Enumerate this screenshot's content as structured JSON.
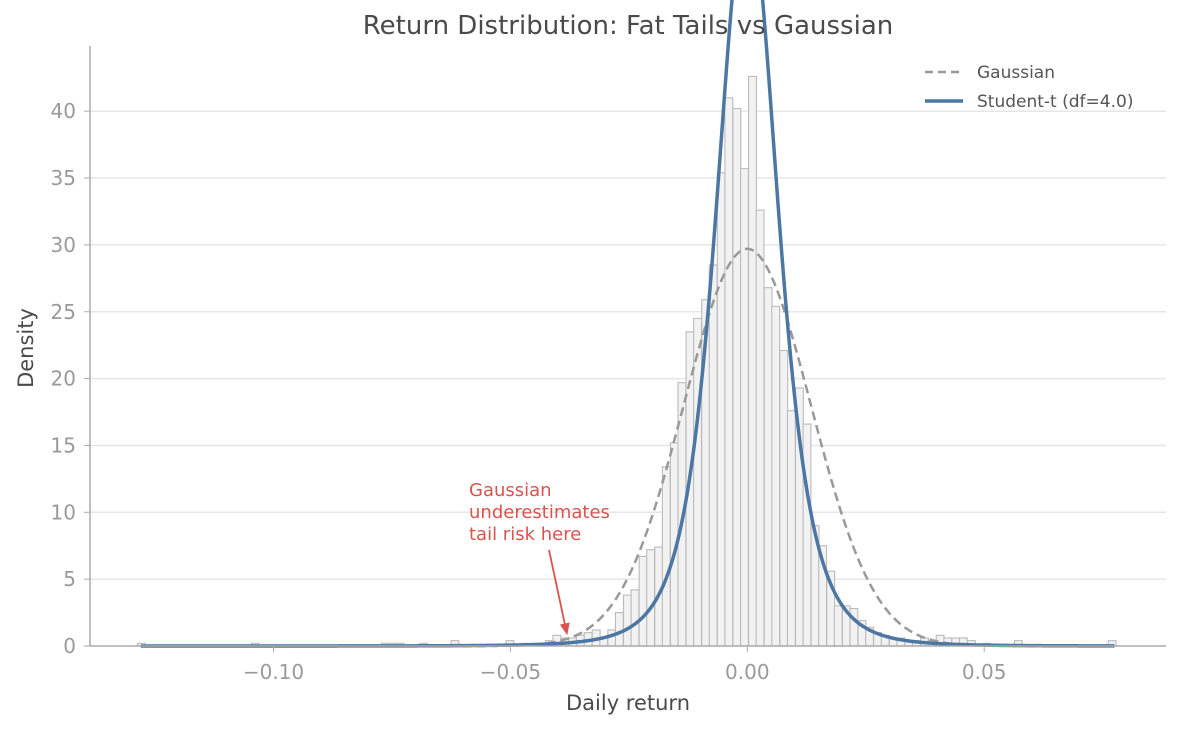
{
  "chart_data": {
    "type": "histogram+line",
    "title": "Return Distribution: Fat Tails vs Gaussian",
    "xlabel": "Daily return",
    "ylabel": "Density",
    "xlim": [
      -0.135,
      0.088
    ],
    "ylim": [
      0,
      45
    ],
    "x_ticks": [
      -0.1,
      -0.05,
      0.0,
      0.05
    ],
    "x_tick_labels": [
      "−0.10",
      "−0.05",
      "0.00",
      "0.05"
    ],
    "y_ticks": [
      0,
      5,
      10,
      15,
      20,
      25,
      30,
      35,
      40
    ],
    "y_tick_labels": [
      "0",
      "5",
      "10",
      "15",
      "20",
      "25",
      "30",
      "35",
      "40"
    ],
    "grid": "horizontal",
    "legend_position": "top-right",
    "histogram": {
      "bin_width": 0.00165,
      "bins": [
        [
          -0.1279,
          0.2
        ],
        [
          -0.1039,
          0.2
        ],
        [
          -0.0764,
          0.2
        ],
        [
          -0.0749,
          0.2
        ],
        [
          -0.0733,
          0.2
        ],
        [
          -0.0683,
          0.2
        ],
        [
          -0.0617,
          0.4
        ],
        [
          -0.0501,
          0.4
        ],
        [
          -0.0468,
          0.2
        ],
        [
          -0.0435,
          0.2
        ],
        [
          -0.0418,
          0.4
        ],
        [
          -0.0402,
          0.8
        ],
        [
          -0.0385,
          0.6
        ],
        [
          -0.0369,
          0.6
        ],
        [
          -0.0352,
          0.8
        ],
        [
          -0.0336,
          1.0
        ],
        [
          -0.0319,
          1.2
        ],
        [
          -0.0303,
          0.6
        ],
        [
          -0.0286,
          1.2
        ],
        [
          -0.027,
          2.5
        ],
        [
          -0.0253,
          3.8
        ],
        [
          -0.0237,
          4.2
        ],
        [
          -0.022,
          6.7
        ],
        [
          -0.0204,
          7.2
        ],
        [
          -0.0187,
          7.4
        ],
        [
          -0.0171,
          13.4
        ],
        [
          -0.0154,
          15.2
        ],
        [
          -0.0138,
          19.7
        ],
        [
          -0.0121,
          23.5
        ],
        [
          -0.0105,
          24.5
        ],
        [
          -0.0088,
          25.9
        ],
        [
          -0.0072,
          28.5
        ],
        [
          -0.0055,
          35.4
        ],
        [
          -0.0039,
          41.0
        ],
        [
          -0.0022,
          40.2
        ],
        [
          -0.0006,
          35.7
        ],
        [
          0.0011,
          42.6
        ],
        [
          0.0027,
          32.6
        ],
        [
          0.0044,
          26.8
        ],
        [
          0.006,
          25.4
        ],
        [
          0.0077,
          22.1
        ],
        [
          0.0093,
          17.6
        ],
        [
          0.011,
          19.3
        ],
        [
          0.0126,
          16.6
        ],
        [
          0.0143,
          9.0
        ],
        [
          0.0159,
          7.5
        ],
        [
          0.0176,
          5.6
        ],
        [
          0.0192,
          3.0
        ],
        [
          0.0209,
          3.0
        ],
        [
          0.0225,
          2.8
        ],
        [
          0.0242,
          1.9
        ],
        [
          0.0258,
          1.4
        ],
        [
          0.0275,
          1.0
        ],
        [
          0.0291,
          0.8
        ],
        [
          0.0308,
          0.6
        ],
        [
          0.0324,
          0.6
        ],
        [
          0.0341,
          0.4
        ],
        [
          0.0357,
          0.4
        ],
        [
          0.0374,
          0.6
        ],
        [
          0.039,
          0.4
        ],
        [
          0.0407,
          0.8
        ],
        [
          0.0423,
          0.6
        ],
        [
          0.044,
          0.6
        ],
        [
          0.0456,
          0.6
        ],
        [
          0.0473,
          0.4
        ],
        [
          0.0506,
          0.2
        ],
        [
          0.0572,
          0.4
        ],
        [
          0.077,
          0.4
        ]
      ]
    },
    "series": [
      {
        "name": "Gaussian",
        "kind": "gaussian",
        "mean": 0.0,
        "sd": 0.01343,
        "color": "#999999",
        "dash": true
      },
      {
        "name": "Student-t (df=4.0)",
        "kind": "student_t",
        "df": 4.0,
        "loc": 0.0,
        "scale": 0.00675,
        "color": "#4c77a3",
        "dash": false
      }
    ],
    "annotation": {
      "lines": [
        "Gaussian",
        "underestimates",
        "tail risk here"
      ],
      "xy": [
        -0.038,
        0.8
      ],
      "text_xy": [
        -0.058,
        12.0
      ],
      "color": "#d9534f"
    }
  }
}
